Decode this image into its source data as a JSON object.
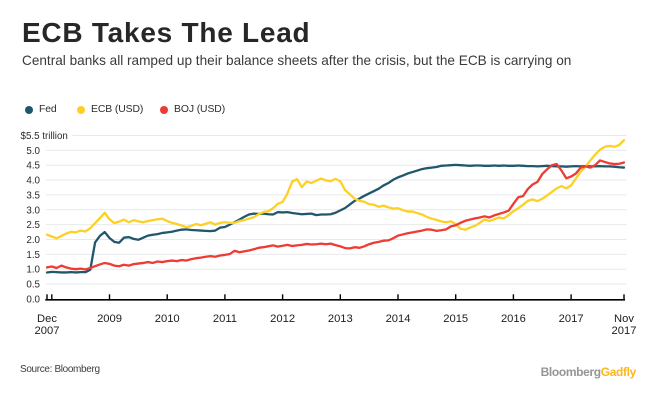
{
  "header": {
    "title": "ECB Takes The Lead",
    "subtitle": "Central banks all ramped up their balance sheets after the crisis, but the ECB is carrying on"
  },
  "legend": {
    "items": [
      {
        "label": "Fed",
        "color": "#20576c"
      },
      {
        "label": "ECB (USD)",
        "color": "#fdd023"
      },
      {
        "label": "BOJ (USD)",
        "color": "#ee3b33"
      }
    ]
  },
  "chart_data": {
    "type": "line",
    "title": "ECB Takes The Lead",
    "unit_label": "$5.5 trillion",
    "ylabel": "",
    "xlabel": "",
    "ylim": [
      0,
      5.5
    ],
    "y_tick_step": 0.5,
    "y_tick_labels": [
      "0.0",
      "0.5",
      "1.0",
      "1.5",
      "2.0",
      "2.5",
      "3.0",
      "3.5",
      "4.0",
      "4.5",
      "5.0"
    ],
    "grid": true,
    "legend_position": "top",
    "x_start": "Dec 2007",
    "x_end": "Nov 2017",
    "x_start_label": [
      "Dec",
      "2007"
    ],
    "x_end_label": [
      "Nov",
      "2017"
    ],
    "x_year_tick_labels": [
      "2009",
      "2010",
      "2011",
      "2012",
      "2013",
      "2014",
      "2015",
      "2016",
      "2017"
    ],
    "x_unlabeled_tick_years": [
      "2008"
    ],
    "x_unit": "months from Dec 2007 to Dec 2017 (end of Nov 2017)",
    "colors": {
      "grid": "#e7e9ec",
      "axis": "#000000",
      "tick_text": "#2b2b2b"
    },
    "series": [
      {
        "name": "Fed",
        "color": "#20576c",
        "values": [
          0.89,
          0.91,
          0.9,
          0.89,
          0.89,
          0.9,
          0.89,
          0.9,
          0.9,
          0.98,
          1.9,
          2.12,
          2.25,
          2.05,
          1.92,
          1.89,
          2.06,
          2.08,
          2.02,
          1.99,
          2.06,
          2.13,
          2.16,
          2.18,
          2.22,
          2.24,
          2.26,
          2.3,
          2.33,
          2.34,
          2.32,
          2.31,
          2.3,
          2.29,
          2.28,
          2.3,
          2.4,
          2.42,
          2.5,
          2.58,
          2.67,
          2.76,
          2.84,
          2.87,
          2.86,
          2.87,
          2.85,
          2.84,
          2.92,
          2.91,
          2.92,
          2.89,
          2.87,
          2.85,
          2.86,
          2.87,
          2.82,
          2.84,
          2.84,
          2.85,
          2.9,
          2.98,
          3.06,
          3.18,
          3.3,
          3.38,
          3.47,
          3.55,
          3.63,
          3.71,
          3.82,
          3.9,
          4.01,
          4.09,
          4.15,
          4.22,
          4.27,
          4.32,
          4.37,
          4.4,
          4.42,
          4.44,
          4.48,
          4.49,
          4.5,
          4.51,
          4.5,
          4.49,
          4.48,
          4.49,
          4.49,
          4.48,
          4.48,
          4.49,
          4.48,
          4.49,
          4.48,
          4.48,
          4.49,
          4.48,
          4.47,
          4.47,
          4.46,
          4.47,
          4.48,
          4.47,
          4.46,
          4.46,
          4.45,
          4.46,
          4.47,
          4.46,
          4.47,
          4.46,
          4.46,
          4.47,
          4.46,
          4.46,
          4.45,
          4.43,
          4.42
        ]
      },
      {
        "name": "ECB (USD)",
        "color": "#fdd023",
        "values": [
          2.16,
          2.1,
          2.04,
          2.12,
          2.2,
          2.26,
          2.24,
          2.3,
          2.27,
          2.38,
          2.55,
          2.72,
          2.9,
          2.68,
          2.55,
          2.6,
          2.67,
          2.58,
          2.65,
          2.61,
          2.58,
          2.62,
          2.65,
          2.68,
          2.7,
          2.62,
          2.56,
          2.52,
          2.47,
          2.41,
          2.46,
          2.52,
          2.48,
          2.53,
          2.58,
          2.5,
          2.56,
          2.58,
          2.56,
          2.56,
          2.62,
          2.65,
          2.7,
          2.75,
          2.85,
          2.92,
          2.95,
          3.05,
          3.2,
          3.26,
          3.55,
          3.95,
          4.03,
          3.76,
          3.95,
          3.9,
          3.98,
          4.05,
          3.99,
          3.96,
          4.04,
          3.96,
          3.66,
          3.52,
          3.37,
          3.3,
          3.27,
          3.19,
          3.17,
          3.1,
          3.14,
          3.08,
          3.04,
          3.05,
          2.99,
          2.94,
          2.94,
          2.89,
          2.84,
          2.76,
          2.7,
          2.66,
          2.61,
          2.58,
          2.61,
          2.52,
          2.36,
          2.33,
          2.4,
          2.46,
          2.56,
          2.68,
          2.62,
          2.68,
          2.74,
          2.71,
          2.82,
          2.95,
          3.05,
          3.17,
          3.3,
          3.35,
          3.29,
          3.37,
          3.48,
          3.6,
          3.72,
          3.8,
          3.72,
          3.82,
          4.05,
          4.28,
          4.46,
          4.66,
          4.86,
          5.02,
          5.12,
          5.15,
          5.12,
          5.18,
          5.34
        ]
      },
      {
        "name": "BOJ (USD)",
        "color": "#ee3b33",
        "values": [
          1.06,
          1.09,
          1.04,
          1.12,
          1.06,
          1.02,
          1.0,
          1.02,
          0.99,
          1.04,
          1.1,
          1.16,
          1.21,
          1.18,
          1.12,
          1.1,
          1.15,
          1.12,
          1.17,
          1.19,
          1.21,
          1.24,
          1.21,
          1.26,
          1.24,
          1.27,
          1.29,
          1.27,
          1.31,
          1.29,
          1.34,
          1.37,
          1.39,
          1.42,
          1.44,
          1.42,
          1.46,
          1.48,
          1.51,
          1.62,
          1.57,
          1.6,
          1.63,
          1.67,
          1.72,
          1.74,
          1.77,
          1.8,
          1.76,
          1.79,
          1.82,
          1.78,
          1.8,
          1.82,
          1.85,
          1.83,
          1.84,
          1.86,
          1.84,
          1.86,
          1.81,
          1.77,
          1.71,
          1.7,
          1.74,
          1.72,
          1.77,
          1.84,
          1.89,
          1.92,
          1.96,
          1.97,
          2.04,
          2.13,
          2.17,
          2.21,
          2.24,
          2.27,
          2.3,
          2.34,
          2.33,
          2.29,
          2.31,
          2.34,
          2.44,
          2.48,
          2.56,
          2.63,
          2.67,
          2.71,
          2.74,
          2.78,
          2.74,
          2.81,
          2.86,
          2.91,
          2.97,
          3.2,
          3.42,
          3.46,
          3.7,
          3.85,
          3.94,
          4.2,
          4.36,
          4.5,
          4.54,
          4.32,
          4.06,
          4.12,
          4.22,
          4.42,
          4.46,
          4.42,
          4.5,
          4.66,
          4.61,
          4.56,
          4.54,
          4.55,
          4.59
        ]
      }
    ]
  },
  "footer": {
    "source": "Source: Bloomberg",
    "brand_primary": "Bloomberg",
    "brand_secondary": "Gadfly"
  }
}
